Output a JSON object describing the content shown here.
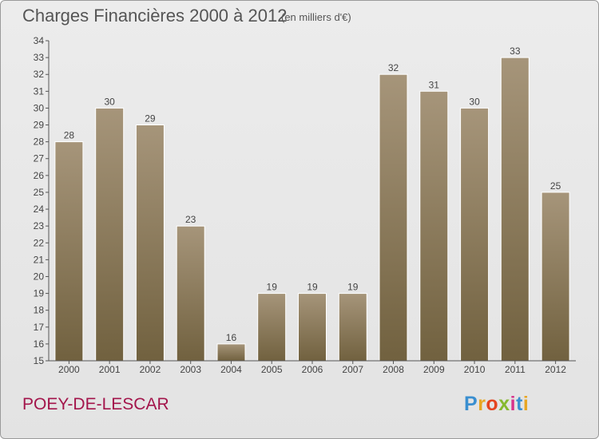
{
  "header": {
    "title": "Charges Financières 2000 à 2012",
    "unit": "(en milliers d'€)"
  },
  "footer": {
    "commune": "POEY-DE-LESCAR",
    "logo": "Proxiti",
    "logo_colors": [
      "#3a8fd0",
      "#e8a623",
      "#e5441f",
      "#86b92f",
      "#d8338b",
      "#3a8fd0",
      "#e8a623"
    ]
  },
  "colors": {
    "bar_light": "#a6957a",
    "bar_dark": "#71613f",
    "axis": "#555555",
    "text": "#444444",
    "title": "#555555",
    "commune": "#a3154b",
    "background": "#e8e8e8"
  },
  "chart_data": {
    "type": "bar",
    "categories": [
      "2000",
      "2001",
      "2002",
      "2003",
      "2004",
      "2005",
      "2006",
      "2007",
      "2008",
      "2009",
      "2010",
      "2011",
      "2012"
    ],
    "values": [
      28,
      30,
      29,
      23,
      16,
      19,
      19,
      19,
      32,
      31,
      30,
      33,
      25
    ],
    "data_labels": [
      "28",
      "30",
      "29",
      "23",
      "16",
      "19",
      "19",
      "19",
      "32",
      "31",
      "30",
      "33",
      "25"
    ],
    "title": "Charges Financières 2000 à 2012",
    "ylabel": "",
    "xlabel": "",
    "ylim": [
      15,
      34
    ],
    "y_ticks": [
      15,
      16,
      17,
      18,
      19,
      20,
      21,
      22,
      23,
      24,
      25,
      26,
      27,
      28,
      29,
      30,
      31,
      32,
      33,
      34
    ],
    "grid": false,
    "legend": "none"
  }
}
